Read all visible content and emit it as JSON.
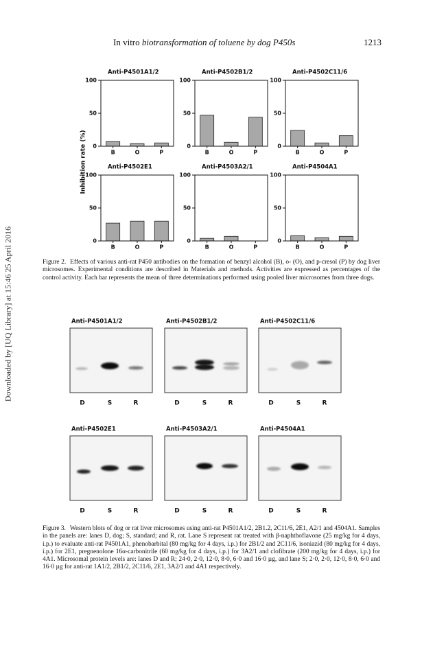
{
  "header": {
    "title": [
      "In vitro",
      "biotransformation of toluene by dog P450s"
    ],
    "page": "1213"
  },
  "side_note": "Downloaded by [UQ Library] at 15:46 25 April 2016",
  "figure2": {
    "ylabel": "Inhibition rate (%)",
    "caption_label": "Figure 2.",
    "caption": "Effects of various anti-rat P450 antibodies on the formation of benzyl alcohol (B), o- (O), and p-cresol (P) by dog liver microsomes. Experimental conditions are described in Materials and methods. Activities are expressed as percentages of the control activity. Each bar represents the mean of three determinations performed using pooled liver microsomes from three dogs."
  },
  "chart_data": [
    {
      "type": "bar",
      "title": "Anti-P4501A1/2",
      "categories": [
        "B",
        "O",
        "P"
      ],
      "values": [
        7,
        4,
        5
      ],
      "color": "#a8a8a8",
      "ylim": [
        0,
        100
      ],
      "yticks": [
        0,
        50,
        100
      ]
    },
    {
      "type": "bar",
      "title": "Anti-P4502B1/2",
      "categories": [
        "B",
        "O",
        "P"
      ],
      "values": [
        47,
        6,
        44
      ],
      "color": "#a8a8a8",
      "ylim": [
        0,
        100
      ],
      "yticks": [
        0,
        50,
        100
      ]
    },
    {
      "type": "bar",
      "title": "Anti-P4502C11/6",
      "categories": [
        "B",
        "O",
        "P"
      ],
      "values": [
        24,
        5,
        16
      ],
      "color": "#a8a8a8",
      "ylim": [
        0,
        100
      ],
      "yticks": [
        0,
        50,
        100
      ]
    },
    {
      "type": "bar",
      "title": "Anti-P4502E1",
      "categories": [
        "B",
        "O",
        "P"
      ],
      "values": [
        27,
        30,
        30
      ],
      "color": "#a8a8a8",
      "ylim": [
        0,
        100
      ],
      "yticks": [
        0,
        50,
        100
      ]
    },
    {
      "type": "bar",
      "title": "Anti-P4503A2/1",
      "categories": [
        "B",
        "O",
        "P"
      ],
      "values": [
        4,
        7,
        0
      ],
      "color": "#a8a8a8",
      "ylim": [
        0,
        100
      ],
      "yticks": [
        0,
        50,
        100
      ]
    },
    {
      "type": "bar",
      "title": "Anti-P4504A1",
      "categories": [
        "B",
        "O",
        "P"
      ],
      "values": [
        8,
        5,
        7
      ],
      "color": "#a8a8a8",
      "ylim": [
        0,
        100
      ],
      "yticks": [
        0,
        50,
        100
      ]
    }
  ],
  "figure3": {
    "blots": [
      {
        "title": "Anti-P4501A1/2",
        "lanes": [
          "D",
          "S",
          "R"
        ]
      },
      {
        "title": "Anti-P4502B1/2",
        "lanes": [
          "D",
          "S",
          "R"
        ]
      },
      {
        "title": "Anti-P4502C11/6",
        "lanes": [
          "D",
          "S",
          "R"
        ]
      },
      {
        "title": "Anti-P4502E1",
        "lanes": [
          "D",
          "S",
          "R"
        ]
      },
      {
        "title": "Anti-P4503A2/1",
        "lanes": [
          "D",
          "S",
          "R"
        ]
      },
      {
        "title": "Anti-P4504A1",
        "lanes": [
          "D",
          "S",
          "R"
        ]
      }
    ],
    "caption_label": "Figure 3.",
    "caption": "Western blots of dog or rat liver microsomes using anti-rat P4501A1/2, 2B1.2, 2C11/6, 2E1, A2/1 and 4504A1. Samples in the panels are: lanes D, dog; S, standard; and R, rat. Lane S represent rat treated with β-naphthoflavone (25 mg/kg for 4 days, i.p.) to evaluate anti-rat P4501A1, phenobarbital (80 mg/kg for 4 days, i.p.) for 2B1/2 and 2C11/6, isoniazid (80 mg/kg for 4 days, i.p.) for 2E1, pregnenolone 16α-carbonitrile (60 mg/kg for 4 days, i.p.) for 3A2/1 and clofibrate (200 mg/kg for 4 days, i.p.) for 4A1. Microsomal protein levels are: lanes D and R; 24·0, 2·0, 12·0, 8·0, 6·0 and 16·0 µg, and lane S; 2·0, 2·0, 12·0, 8·0, 6·0 and 16·0 µg for anti-rat 1A1/2, 2B1/2, 2C11/6, 2E1, 3A2/1 and 4A1 respectively."
  }
}
